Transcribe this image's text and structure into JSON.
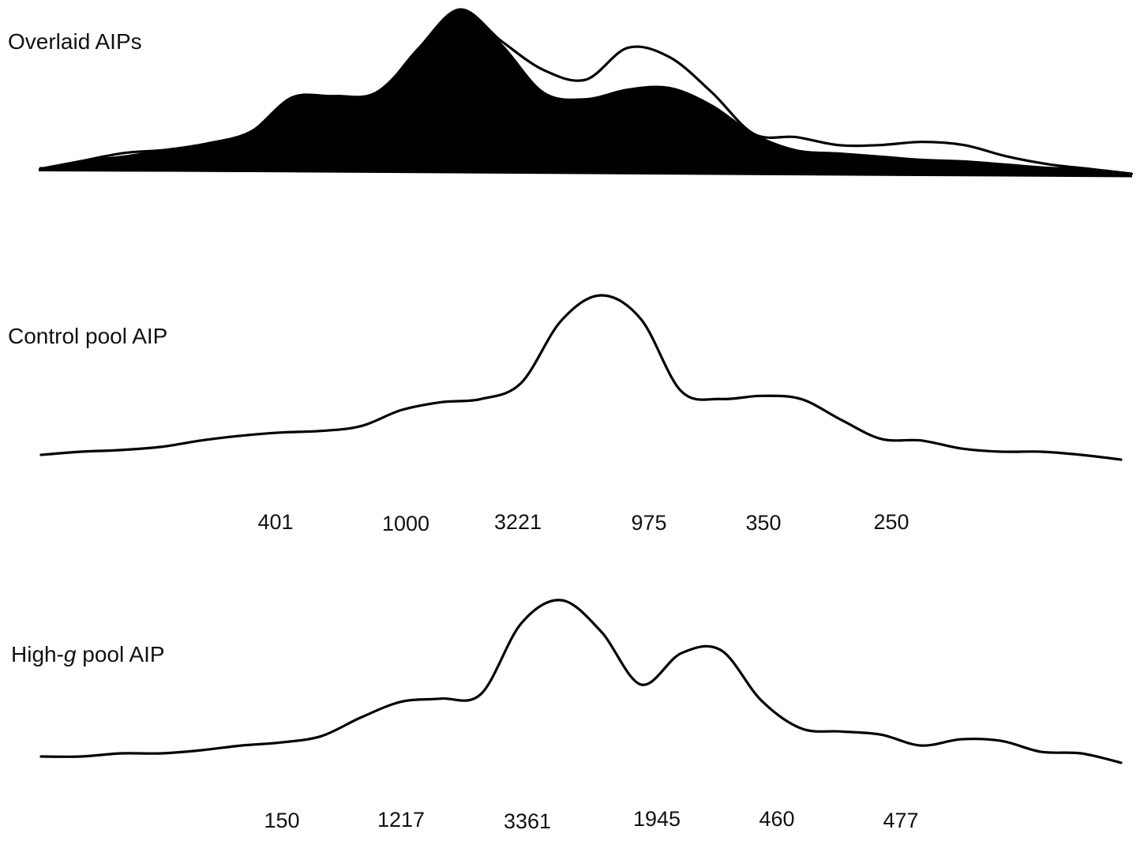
{
  "panels": {
    "overlaid": {
      "title": "Overlaid AIPs"
    },
    "control": {
      "title": "Control pool AIP"
    },
    "high_g": {
      "title_prefix": "High-",
      "title_italic": "g",
      "title_suffix": " pool AIP"
    }
  },
  "chart_data": [
    {
      "type": "area",
      "title": "Overlaid AIPs",
      "series": [
        {
          "values": [
            0.0,
            0.05,
            0.08,
            0.12,
            0.16,
            0.23,
            0.45,
            0.46,
            0.48,
            0.74,
            1.0,
            0.78,
            0.48,
            0.44,
            0.5,
            0.51,
            0.4,
            0.22,
            0.12,
            0.1,
            0.08,
            0.06,
            0.05,
            0.03,
            0.01,
            0.0,
            -0.03
          ]
        },
        {
          "values": [
            0.0,
            0.05,
            0.1,
            0.12,
            0.16,
            0.23,
            0.42,
            0.45,
            0.46,
            0.75,
            1.0,
            0.8,
            0.62,
            0.56,
            0.76,
            0.7,
            0.48,
            0.22,
            0.2,
            0.15,
            0.15,
            0.17,
            0.15,
            0.08,
            0.03,
            0.0,
            -0.03
          ]
        }
      ]
    },
    {
      "type": "line",
      "title": "Control pool AIP",
      "values": [
        0.0,
        0.02,
        0.03,
        0.05,
        0.09,
        0.12,
        0.14,
        0.15,
        0.18,
        0.28,
        0.33,
        0.35,
        0.45,
        0.84,
        1.0,
        0.85,
        0.4,
        0.35,
        0.37,
        0.35,
        0.22,
        0.1,
        0.09,
        0.04,
        0.02,
        0.02,
        0.0,
        -0.03
      ],
      "peak_labels": [
        "401",
        "1000",
        "3221",
        "975",
        "350",
        "250"
      ]
    },
    {
      "type": "line",
      "title": "High-g pool AIP",
      "values": [
        0.0,
        0.0,
        0.02,
        0.02,
        0.04,
        0.07,
        0.09,
        0.13,
        0.25,
        0.35,
        0.37,
        0.4,
        0.85,
        1.0,
        0.8,
        0.46,
        0.66,
        0.68,
        0.36,
        0.18,
        0.16,
        0.14,
        0.07,
        0.11,
        0.1,
        0.03,
        0.02,
        -0.04
      ],
      "peak_labels": [
        "150",
        "1217",
        "3361",
        "1945",
        "460",
        "477"
      ]
    }
  ]
}
